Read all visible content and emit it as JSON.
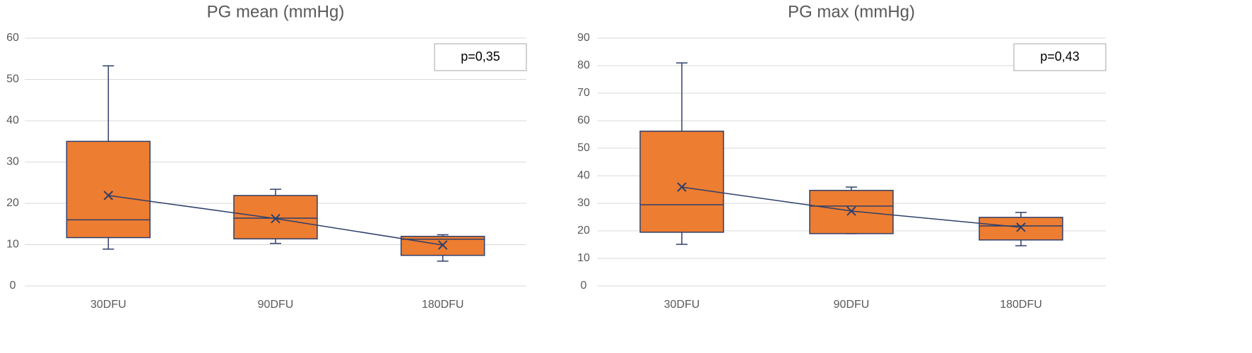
{
  "chart_data": [
    {
      "type": "box",
      "title": "PG mean (mmHg)",
      "categories": [
        "30DFU",
        "90DFU",
        "180DFU"
      ],
      "min": [
        8.9,
        10.3,
        6.0
      ],
      "q1": [
        11.7,
        11.4,
        7.4
      ],
      "median": [
        16.0,
        16.4,
        11.3
      ],
      "q3": [
        35.0,
        21.9,
        12.0
      ],
      "max": [
        53.3,
        23.4,
        12.4
      ],
      "mean": [
        21.9,
        16.3,
        9.9
      ],
      "color": "#ed7d31",
      "line_color": "#2f3f6b",
      "annotation": "p=0,35",
      "ylim": [
        0,
        60
      ],
      "yticks": [
        0,
        10,
        20,
        30,
        40,
        50,
        60
      ],
      "grid": true
    },
    {
      "type": "box",
      "title": "PG max (mmHg)",
      "categories": [
        "30DFU",
        "90DFU",
        "180DFU"
      ],
      "min": [
        15.1,
        19.0,
        14.6
      ],
      "q1": [
        19.5,
        19.0,
        16.7
      ],
      "median": [
        29.5,
        29.0,
        21.8
      ],
      "q3": [
        56.2,
        34.7,
        24.9
      ],
      "max": [
        81.0,
        35.9,
        26.7
      ],
      "mean": [
        35.9,
        27.2,
        21.3
      ],
      "color": "#ed7d31",
      "line_color": "#2f3f6b",
      "annotation": "p=0,43",
      "ylim": [
        0,
        90
      ],
      "yticks": [
        0,
        10,
        20,
        30,
        40,
        50,
        60,
        70,
        80,
        90
      ],
      "grid": true
    }
  ]
}
